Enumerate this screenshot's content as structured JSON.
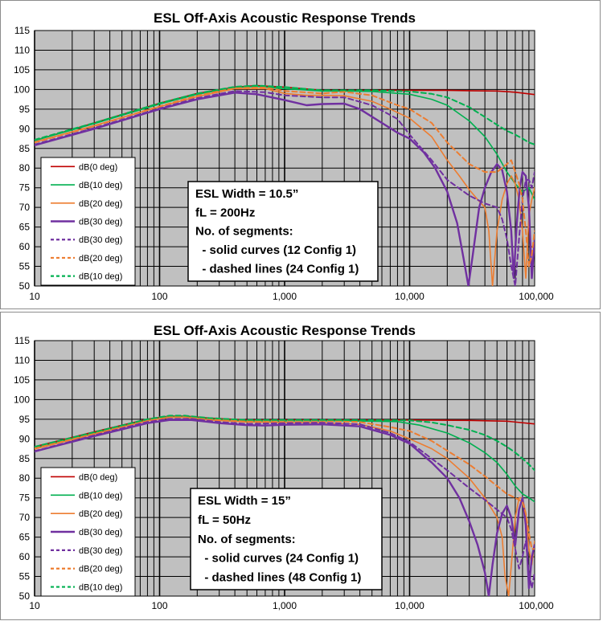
{
  "chart_data": [
    {
      "type": "line",
      "title": "ESL Off-Axis Acoustic Response Trends",
      "xlabel": "",
      "ylabel": "",
      "xscale": "log",
      "xlim": [
        10,
        100000
      ],
      "ylim": [
        50,
        115
      ],
      "x_ticks": [
        "10",
        "100",
        "1,000",
        "10,000",
        "100,000"
      ],
      "y_ticks": [
        "50",
        "55",
        "60",
        "65",
        "70",
        "75",
        "80",
        "85",
        "90",
        "95",
        "100",
        "105",
        "110",
        "115"
      ],
      "grid": true,
      "legend_position": "bottom-left",
      "legend": [
        "dB(0 deg)",
        "dB(10 deg)",
        "dB(20 deg)",
        "dB(30 deg)",
        "dB(30 deg)",
        "dB(20 deg)",
        "dB(10 deg)"
      ],
      "note": [
        "ESL Width = 10.5”",
        "fL = 200Hz",
        "No. of segments:",
        "  - solid curves (12 Config 1)",
        "  - dashed lines (24 Config 1)"
      ],
      "series": [
        {
          "name": "dB(0 deg)",
          "color": "#c00000",
          "dash": false,
          "x": [
            10,
            30,
            100,
            200,
            400,
            600,
            1000,
            2000,
            3000,
            5000,
            10000,
            20000,
            30000,
            50000,
            70000,
            100000
          ],
          "y": [
            87,
            91.5,
            96.5,
            99,
            100.6,
            101,
            100.6,
            99.8,
            99.8,
            99.8,
            99.8,
            99.8,
            99.7,
            99.6,
            99.3,
            98.7
          ]
        },
        {
          "name": "dB(10 deg)",
          "color": "#00b050",
          "dash": false,
          "x": [
            10,
            30,
            100,
            200,
            400,
            600,
            1000,
            2000,
            3000,
            5000,
            10000,
            15000,
            20000,
            30000,
            40000,
            50000,
            60000,
            70000,
            80000,
            90000,
            100000
          ],
          "y": [
            87,
            91.3,
            96.3,
            98.8,
            100.5,
            100.8,
            100.2,
            99.6,
            99.6,
            99.5,
            98.8,
            97.5,
            96,
            92,
            88,
            83.5,
            79,
            76,
            74,
            75,
            72
          ]
        },
        {
          "name": "dB(20 deg)",
          "color": "#ed7d31",
          "dash": false,
          "x": [
            10,
            30,
            100,
            200,
            400,
            700,
            1000,
            1500,
            2000,
            3000,
            5000,
            7000,
            10000,
            15000,
            20000,
            25000,
            30000,
            35000,
            40000,
            43000,
            46000,
            50000,
            55000,
            60000,
            65000,
            70000,
            75000,
            80000,
            85000,
            90000,
            95000,
            100000
          ],
          "y": [
            86.6,
            90.8,
            95.6,
            98.2,
            100.2,
            100.2,
            99,
            98.5,
            98.5,
            98.4,
            97,
            95,
            92.7,
            88,
            82,
            78,
            74.5,
            72,
            70,
            64,
            50,
            64,
            72,
            76,
            78,
            76,
            72,
            64,
            52,
            68,
            72,
            75
          ]
        },
        {
          "name": "dB(30 deg)",
          "color": "#7030a0",
          "dash": false,
          "x": [
            10,
            30,
            100,
            200,
            400,
            600,
            1000,
            1500,
            2000,
            3000,
            4000,
            6000,
            8000,
            10000,
            13000,
            16000,
            20000,
            24000,
            27000,
            29500,
            32000,
            36000,
            40000,
            45000,
            50000,
            55000,
            60000,
            65000,
            68000,
            72000,
            76000,
            80000,
            85000,
            90000,
            95000,
            100000
          ],
          "y": [
            85.8,
            90,
            95,
            97.5,
            99.2,
            98.8,
            97.3,
            96,
            96.3,
            96.4,
            95,
            91.5,
            89,
            87.5,
            84,
            80,
            74,
            66,
            57,
            50,
            58,
            70,
            75,
            79,
            81,
            79.5,
            74,
            64,
            52,
            66,
            75,
            79,
            78,
            70,
            52,
            62
          ]
        },
        {
          "name": "dB(30 deg)",
          "color": "#7030a0",
          "dash": true,
          "x": [
            10,
            30,
            100,
            200,
            400,
            700,
            1000,
            2000,
            3000,
            5000,
            8000,
            10000,
            15000,
            20000,
            30000,
            40000,
            50000,
            55000,
            60000,
            65000,
            70000,
            75000,
            80000,
            85000,
            90000,
            95000,
            100000
          ],
          "y": [
            86,
            90.2,
            95.2,
            97.8,
            99.6,
            99.3,
            98.5,
            98,
            98,
            96,
            92.5,
            88.5,
            82,
            77,
            73,
            71,
            70,
            67,
            62,
            55,
            50,
            62,
            72,
            77,
            77,
            75,
            79
          ]
        },
        {
          "name": "dB(20 deg)",
          "color": "#ed7d31",
          "dash": true,
          "x": [
            10,
            30,
            100,
            200,
            400,
            700,
            1000,
            2000,
            3000,
            5000,
            8000,
            10000,
            15000,
            20000,
            30000,
            40000,
            50000,
            60000,
            65000,
            70000,
            75000,
            80000,
            85000,
            90000,
            95000,
            100000
          ],
          "y": [
            86.5,
            90.7,
            95.7,
            98.4,
            100.4,
            100.5,
            99.6,
            99,
            99.4,
            98.5,
            96,
            95,
            91.5,
            86.5,
            81,
            79,
            79,
            81,
            82,
            79,
            76,
            72,
            64,
            55,
            58,
            64
          ]
        },
        {
          "name": "dB(10 deg)",
          "color": "#00b050",
          "dash": true,
          "x": [
            10,
            30,
            100,
            200,
            400,
            600,
            1000,
            2000,
            3000,
            5000,
            10000,
            15000,
            20000,
            30000,
            40000,
            50000,
            60000,
            70000,
            80000,
            90000,
            100000
          ],
          "y": [
            87.2,
            91.5,
            96.5,
            99,
            100.7,
            101,
            100.6,
            99.8,
            99.8,
            99.8,
            99.5,
            98.9,
            98,
            95.5,
            93,
            91,
            89.5,
            88.5,
            87.5,
            86.5,
            86
          ]
        }
      ]
    },
    {
      "type": "line",
      "title": "ESL Off-Axis Acoustic Response Trends",
      "xlabel": "",
      "ylabel": "",
      "xscale": "log",
      "xlim": [
        10,
        100000
      ],
      "ylim": [
        50,
        115
      ],
      "x_ticks": [
        "10",
        "100",
        "1,000",
        "10,000",
        "100,000"
      ],
      "y_ticks": [
        "50",
        "55",
        "60",
        "65",
        "70",
        "75",
        "80",
        "85",
        "90",
        "95",
        "100",
        "105",
        "110",
        "115"
      ],
      "grid": true,
      "legend_position": "bottom-left",
      "legend": [
        "dB(0 deg)",
        "dB(10 deg)",
        "dB(20 deg)",
        "dB(30 deg)",
        "dB(30 deg)",
        "dB(20 deg)",
        "dB(10 deg)"
      ],
      "note": [
        "ESL Width = 15”",
        "fL = 50Hz",
        "No. of segments:",
        "  - solid curves (24 Config 1)",
        "  - dashed lines (48 Config 1)"
      ],
      "series": [
        {
          "name": "dB(0 deg)",
          "color": "#c00000",
          "dash": false,
          "x": [
            10,
            30,
            80,
            120,
            160,
            250,
            500,
            1000,
            3000,
            10000,
            30000,
            60000,
            100000
          ],
          "y": [
            88,
            91.8,
            95,
            95.8,
            95.8,
            95.3,
            94.8,
            94.8,
            94.8,
            94.8,
            94.7,
            94.5,
            93.8
          ]
        },
        {
          "name": "dB(10 deg)",
          "color": "#00b050",
          "dash": false,
          "x": [
            10,
            30,
            80,
            120,
            160,
            250,
            500,
            1000,
            3000,
            8000,
            12000,
            20000,
            30000,
            40000,
            50000,
            60000,
            70000,
            80000,
            90000,
            100000
          ],
          "y": [
            87.7,
            91.5,
            94.8,
            95.7,
            95.7,
            95.1,
            94.6,
            94.6,
            94.6,
            94.4,
            93.5,
            91.5,
            89,
            86.5,
            84,
            81,
            78,
            76,
            75,
            74
          ]
        },
        {
          "name": "dB(20 deg)",
          "color": "#ed7d31",
          "dash": false,
          "x": [
            10,
            30,
            80,
            120,
            160,
            250,
            500,
            1000,
            2000,
            4000,
            7000,
            10000,
            15000,
            20000,
            30000,
            40000,
            50000,
            55000,
            58000,
            62000,
            66000,
            70000,
            75000,
            80000,
            85000,
            90000,
            95000,
            100000
          ],
          "y": [
            87.4,
            91.2,
            94.6,
            95.5,
            95.5,
            94.8,
            94.3,
            94.2,
            94.2,
            93.7,
            92,
            90,
            87.5,
            85,
            80,
            75,
            70,
            65,
            55,
            50,
            60,
            70,
            75,
            75,
            71,
            62,
            58,
            64
          ]
        },
        {
          "name": "dB(30 deg)",
          "color": "#7030a0",
          "dash": false,
          "x": [
            10,
            30,
            80,
            120,
            180,
            300,
            500,
            700,
            1000,
            2000,
            4000,
            7000,
            10000,
            15000,
            20000,
            25000,
            30000,
            35000,
            40000,
            43000,
            46000,
            50000,
            55000,
            60000,
            65000,
            70000,
            75000,
            80000,
            85000,
            90000,
            95000,
            100000
          ],
          "y": [
            86.8,
            90.7,
            94,
            94.8,
            94.8,
            94,
            93.5,
            93.4,
            93.6,
            93.7,
            93.2,
            91,
            88.8,
            84,
            80,
            75,
            69,
            63,
            56,
            50,
            58,
            66,
            71,
            73,
            70,
            63,
            72,
            75,
            68,
            52,
            60,
            63
          ]
        },
        {
          "name": "dB(30 deg)",
          "color": "#7030a0",
          "dash": true,
          "x": [
            10,
            30,
            80,
            120,
            180,
            300,
            500,
            1000,
            2000,
            4000,
            7000,
            10000,
            15000,
            20000,
            30000,
            40000,
            50000,
            60000,
            65000,
            70000,
            75000,
            80000,
            85000,
            90000,
            95000,
            100000
          ],
          "y": [
            86.9,
            90.9,
            94.3,
            95.1,
            95.1,
            94.3,
            93.8,
            94,
            94.1,
            93.7,
            91.5,
            89.2,
            85,
            82,
            77.5,
            74.5,
            72,
            70,
            67,
            62,
            57,
            60,
            64,
            56,
            52,
            56
          ]
        },
        {
          "name": "dB(20 deg)",
          "color": "#ed7d31",
          "dash": true,
          "x": [
            10,
            30,
            80,
            120,
            160,
            250,
            500,
            1000,
            2000,
            4000,
            7000,
            10000,
            15000,
            20000,
            30000,
            40000,
            50000,
            60000,
            70000,
            80000,
            85000,
            90000,
            95000,
            100000
          ],
          "y": [
            87.6,
            91.4,
            94.8,
            95.8,
            95.8,
            95.1,
            94.6,
            94.6,
            94.6,
            94.3,
            93,
            92,
            89.5,
            87,
            83.5,
            80.5,
            78,
            76,
            75,
            74,
            71,
            66,
            62,
            62
          ]
        },
        {
          "name": "dB(10 deg)",
          "color": "#00b050",
          "dash": true,
          "x": [
            10,
            30,
            80,
            120,
            160,
            250,
            500,
            1000,
            3000,
            10000,
            15000,
            20000,
            30000,
            40000,
            50000,
            60000,
            70000,
            80000,
            90000,
            100000
          ],
          "y": [
            88,
            91.7,
            95,
            95.9,
            95.9,
            95.3,
            94.8,
            94.8,
            94.8,
            94.7,
            94.2,
            93.5,
            92.3,
            91,
            89.5,
            88,
            86.5,
            85,
            83.5,
            82
          ]
        }
      ]
    }
  ]
}
